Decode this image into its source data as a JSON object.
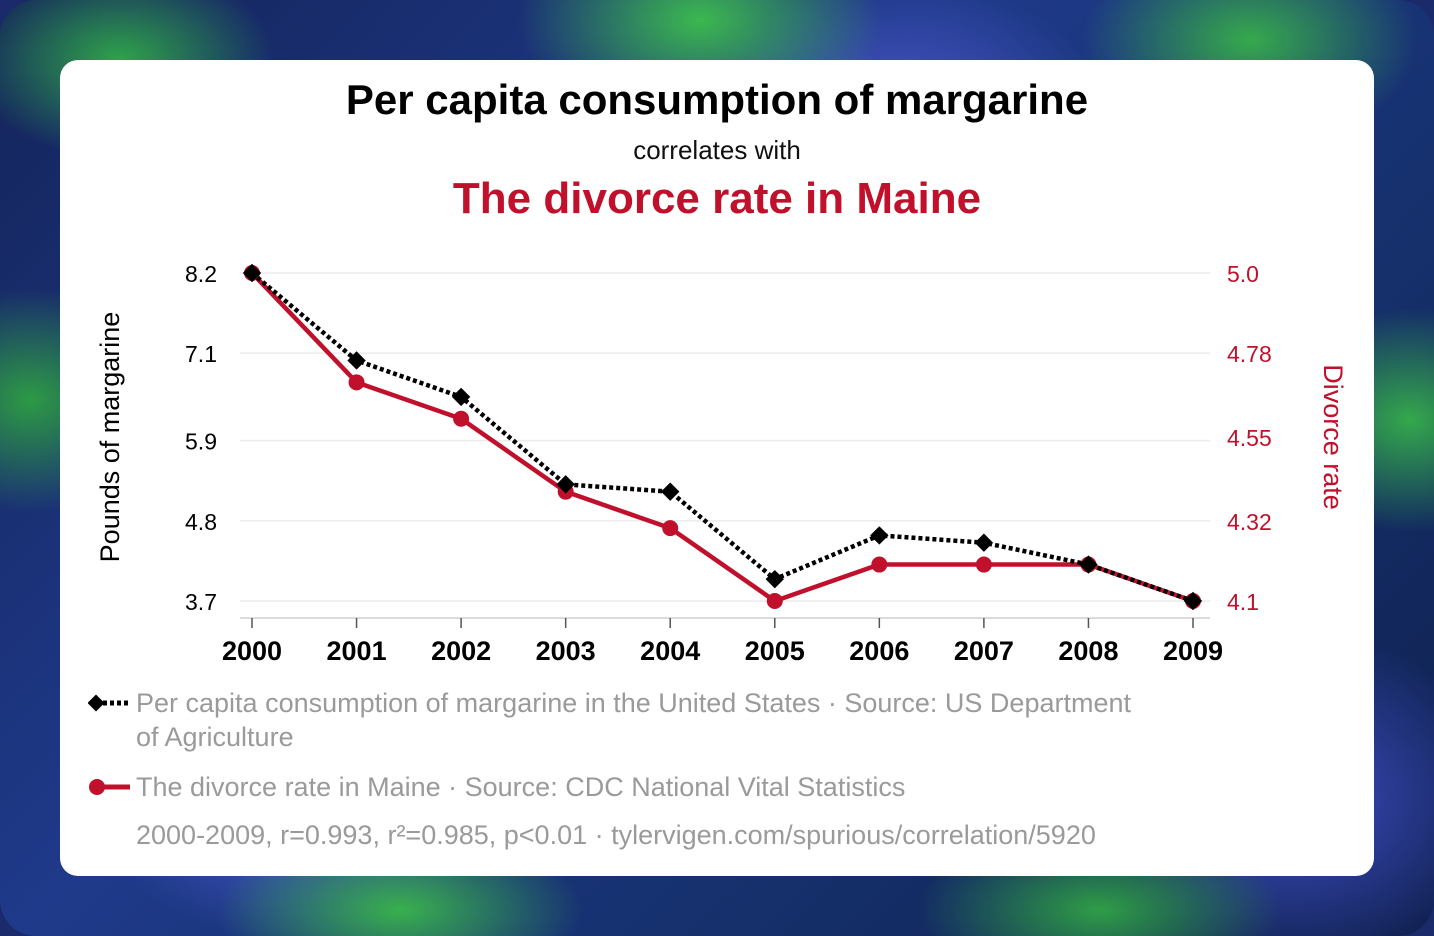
{
  "header": {
    "title": "Per capita consumption of margarine",
    "subtitle": "correlates with",
    "title2": "The divorce rate in Maine"
  },
  "colors": {
    "series1": "#000000",
    "series2": "#c0102b",
    "accent": "#c0102b"
  },
  "chart_data": {
    "type": "line",
    "x": [
      2000,
      2001,
      2002,
      2003,
      2004,
      2005,
      2006,
      2007,
      2008,
      2009
    ],
    "x_tick_labels": [
      "2000",
      "2001",
      "2002",
      "2003",
      "2004",
      "2005",
      "2006",
      "2007",
      "2008",
      "2009"
    ],
    "ylabel_left": "Pounds of margarine",
    "ylabel_right": "Divorce rate",
    "left_ticks": [
      {
        "value": 8.2,
        "label": "8.2"
      },
      {
        "value": 7.1,
        "label": "7.1"
      },
      {
        "value": 5.9,
        "label": "5.9"
      },
      {
        "value": 4.8,
        "label": "4.8"
      },
      {
        "value": 3.7,
        "label": "3.7"
      }
    ],
    "right_ticks": [
      {
        "value": 5.0,
        "label": "5.0"
      },
      {
        "value": 4.78,
        "label": "4.78"
      },
      {
        "value": 4.55,
        "label": "4.55"
      },
      {
        "value": 4.32,
        "label": "4.32"
      },
      {
        "value": 4.1,
        "label": "4.1"
      }
    ],
    "ylim_left": [
      3.7,
      8.2
    ],
    "ylim_right": [
      4.1,
      5.0
    ],
    "grid": true,
    "series": [
      {
        "name": "Per capita consumption of margarine in the United States",
        "axis": "left",
        "style": "dotted",
        "marker": "diamond",
        "values": [
          8.2,
          7.0,
          6.5,
          5.3,
          5.2,
          4.0,
          4.6,
          4.5,
          4.2,
          3.7
        ]
      },
      {
        "name": "The divorce rate in Maine",
        "axis": "right",
        "style": "solid",
        "marker": "circle",
        "values": [
          5.0,
          4.7,
          4.6,
          4.4,
          4.3,
          4.1,
          4.2,
          4.2,
          4.2,
          4.1
        ]
      }
    ]
  },
  "legend": {
    "item1": "Per capita consumption of margarine in the United States · Source: US Department of Agriculture",
    "item2": "The divorce rate in Maine · Source: CDC National Vital Statistics"
  },
  "footer": "2000-2009, r=0.993, r²=0.985, p<0.01 · tylervigen.com/spurious/correlation/5920"
}
